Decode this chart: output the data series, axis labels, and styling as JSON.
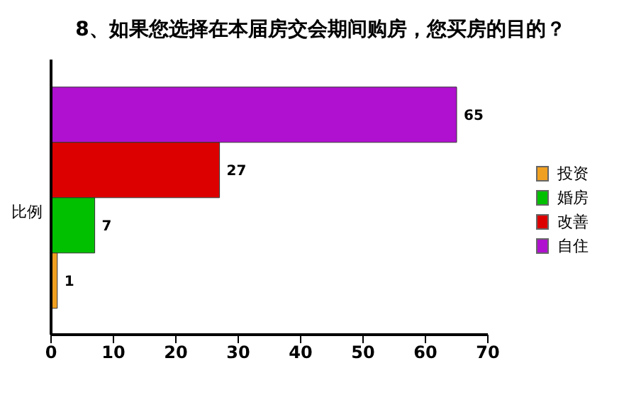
{
  "chart_data": {
    "type": "bar",
    "orientation": "horizontal",
    "title": "8、如果您选择在本届房交会期间购房，您买房的目的？",
    "ylabel": "比例",
    "categories": [
      null
    ],
    "series": [
      {
        "name": "投资",
        "color": "#f0a020",
        "values": [
          1
        ]
      },
      {
        "name": "婚房",
        "color": "#00c000",
        "values": [
          7
        ]
      },
      {
        "name": "改善",
        "color": "#dd0000",
        "values": [
          27
        ]
      },
      {
        "name": "自住",
        "color": "#b010d0",
        "values": [
          65
        ]
      }
    ],
    "xlim": [
      0,
      70
    ],
    "xticks": [
      0,
      10,
      20,
      30,
      40,
      50,
      60,
      70
    ],
    "data_labels": true,
    "legend": "right",
    "grid": false
  }
}
